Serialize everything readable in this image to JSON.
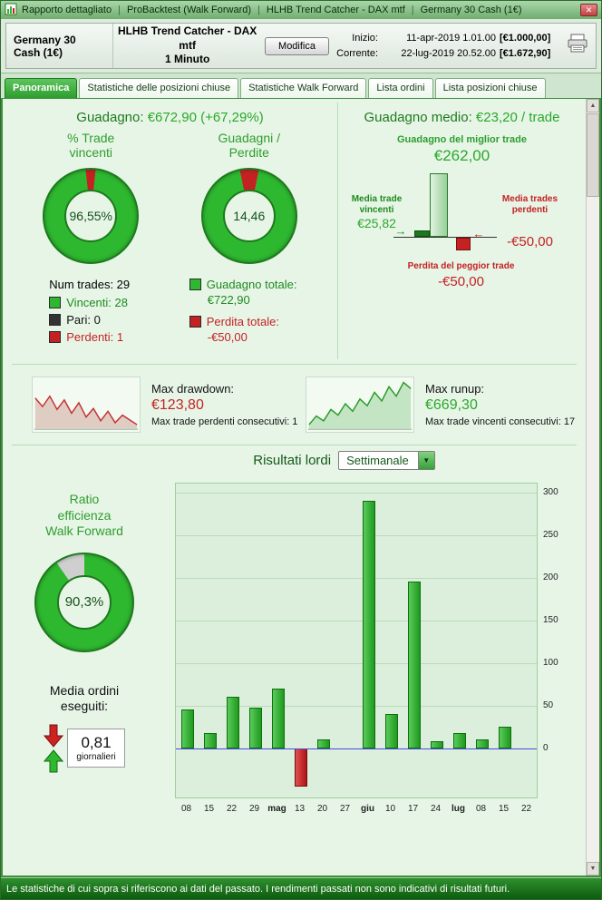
{
  "title_bar": {
    "segments": [
      "Rapporto dettagliato",
      "ProBacktest (Walk Forward)",
      "HLHB Trend Catcher - DAX mtf",
      "Germany 30 Cash (1€)"
    ]
  },
  "icons": {
    "close": "✕",
    "up_arrow": "▲",
    "down_arrow": "▼",
    "select_arrow": "▼",
    "arrow_right": "→",
    "arrow_left": "←"
  },
  "header": {
    "instrument": "Germany 30 Cash (1€)",
    "strategy": "HLHB Trend Catcher - DAX mtf",
    "timeframe": "1 Minuto",
    "modify_button": "Modifica",
    "inizio_label": "Inizio:",
    "inizio_date": "11-apr-2019 1.01.00",
    "inizio_value": "[€1.000,00]",
    "corrente_label": "Corrente:",
    "corrente_date": "22-lug-2019 20.52.00",
    "corrente_value": "[€1.672,90]"
  },
  "tabs": {
    "items": [
      {
        "label": "Panoramica",
        "active": true
      },
      {
        "label": "Statistiche delle posizioni chiuse",
        "active": false
      },
      {
        "label": "Statistiche Walk Forward",
        "active": false
      },
      {
        "label": "Lista ordini",
        "active": false
      },
      {
        "label": "Lista posizioni chiuse",
        "active": false
      }
    ]
  },
  "colors": {
    "donut_green": "#2eb830",
    "donut_red": "#c42222",
    "donut_gray": "#cfcfcf"
  },
  "overview": {
    "gain_label": "Guadagno:",
    "gain_value": "€672,90 (+67,29%)",
    "win_donut": {
      "title": "% Trade\nvincenti",
      "value": "96,55%",
      "green_pct": 96.55
    },
    "pf_donut": {
      "title": "Guadagni /\nPerdite",
      "value": "14,46",
      "green_pct": 93.5
    },
    "num_trades": "Num trades: 29",
    "legend": [
      {
        "label": "Vincenti: 28",
        "color": "#2eb830",
        "text_color": "#1e8a1e"
      },
      {
        "label": "Pari: 0",
        "color": "#333333",
        "text_color": "#111111"
      },
      {
        "label": "Perdenti: 1",
        "color": "#c42222",
        "text_color": "#c42222"
      }
    ],
    "totals": [
      {
        "label": "Guadagno totale:",
        "value": "€722,90",
        "color": "#2eb830",
        "text_color": "#1e8a1e"
      },
      {
        "label": "Perdita totale:",
        "value": "-€50,00",
        "color": "#c42222",
        "text_color": "#c42222"
      }
    ],
    "avg_label": "Guadagno medio:",
    "avg_value": "€23,20 / trade",
    "best_trade": {
      "label": "Guadagno del miglior trade",
      "value": "€262,00"
    },
    "avg_win": {
      "label": "Media trade\nvincenti",
      "value": "€25,82"
    },
    "avg_loss": {
      "label": "Media trades\nperdenti",
      "value": "-€50,00"
    },
    "worst_trade": {
      "label": "Perdita del peggior trade",
      "value": "-€50,00"
    }
  },
  "drawdown": {
    "label": "Max drawdown:",
    "value": "€123,80",
    "sub": "Max trade perdenti consecutivi:  1",
    "spark": [
      62,
      44,
      66,
      38,
      58,
      30,
      52,
      22,
      40,
      14,
      34,
      10,
      26,
      16,
      6
    ]
  },
  "runup": {
    "label": "Max runup:",
    "value": "€669,30",
    "sub": "Max trade vincenti consecutivi: 17",
    "spark": [
      6,
      24,
      14,
      38,
      26,
      50,
      34,
      60,
      46,
      74,
      56,
      86,
      66,
      95,
      82
    ]
  },
  "results": {
    "label": "Risultati lordi",
    "period": "Settimanale",
    "wf_title": "Ratio\nefficienza\nWalk Forward",
    "wf_value": "90,3%",
    "wf_pct": 90.3,
    "orders_label": "Media ordini\neseguiti:",
    "orders_value": "0,81",
    "orders_unit": "giornalieri"
  },
  "chart_data": {
    "type": "bar",
    "title": "Risultati lordi (Settimanale)",
    "categories": [
      "08",
      "15",
      "22",
      "29",
      "mag",
      "13",
      "20",
      "27",
      "giu",
      "10",
      "17",
      "24",
      "lug",
      "08",
      "15",
      "22"
    ],
    "values": [
      45,
      18,
      60,
      48,
      70,
      -45,
      10,
      0,
      290,
      40,
      195,
      8,
      18,
      10,
      25,
      0
    ],
    "yticks": [
      0,
      50,
      100,
      150,
      200,
      250,
      300
    ],
    "ylim": [
      -60,
      310
    ],
    "xlabel": "",
    "ylabel": "",
    "grid": true,
    "legend_position": "none",
    "positive_color": "#2eb030",
    "negative_color": "#c42222",
    "zero_line_color": "#4a4ae0"
  },
  "status_bar": {
    "text": "Le statistiche di cui sopra si riferiscono ai dati del passato. I rendimenti passati non sono indicativi di risultati futuri."
  }
}
